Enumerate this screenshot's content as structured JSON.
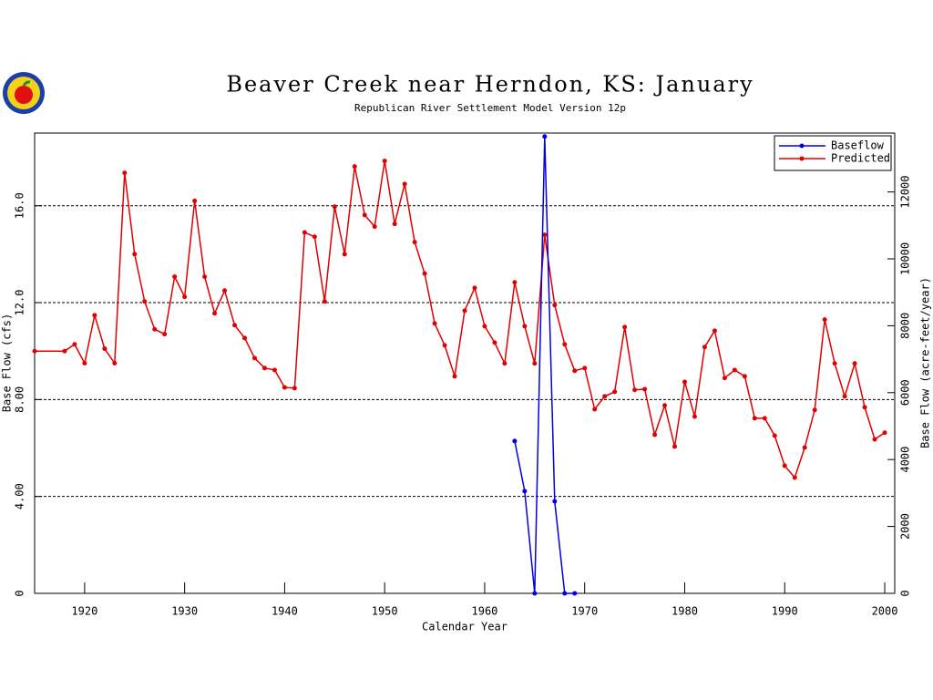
{
  "chart_data": {
    "type": "line",
    "title": "Beaver Creek near Herndon, KS: January",
    "subtitle": "Republican River Settlement Model Version 12p",
    "x_label": "Calendar Year",
    "y_label": "Base Flow (cfs)",
    "y2_label": "Base Flow (acre-feet/year)",
    "xlim": [
      1915,
      2001
    ],
    "xticks": [
      1920,
      1930,
      1940,
      1950,
      1960,
      1970,
      1980,
      1990,
      2000
    ],
    "ylim": [
      0,
      19
    ],
    "yticks": [
      {
        "value": 0,
        "label": "0"
      },
      {
        "value": 4,
        "label": "4.00"
      },
      {
        "value": 8,
        "label": "8.00"
      },
      {
        "value": 12,
        "label": "12.0"
      },
      {
        "value": 16,
        "label": "16.0"
      }
    ],
    "y2lim": [
      0,
      13760
    ],
    "y2ticks": [
      0,
      2000,
      4000,
      6000,
      8000,
      10000,
      12000
    ],
    "grid": true,
    "legend": "top-right",
    "series": [
      {
        "name": "Baseflow",
        "color": "#0000e0",
        "x": [
          1963,
          1964,
          1965,
          1966,
          1967,
          1968,
          1969
        ],
        "values": [
          6.29,
          4.22,
          0,
          18.86,
          3.8,
          0,
          0
        ]
      },
      {
        "name": "Predicted",
        "color": "#e00000",
        "x": [
          1915,
          1918,
          1919,
          1920,
          1921,
          1922,
          1923,
          1924,
          1925,
          1926,
          1927,
          1928,
          1929,
          1930,
          1931,
          1932,
          1933,
          1934,
          1935,
          1936,
          1937,
          1938,
          1939,
          1940,
          1941,
          1942,
          1943,
          1944,
          1945,
          1946,
          1947,
          1948,
          1949,
          1950,
          1951,
          1952,
          1953,
          1954,
          1955,
          1956,
          1957,
          1958,
          1959,
          1960,
          1961,
          1962,
          1963,
          1964,
          1965,
          1966,
          1967,
          1968,
          1969,
          1970,
          1971,
          1972,
          1973,
          1974,
          1975,
          1976,
          1977,
          1978,
          1979,
          1980,
          1981,
          1982,
          1983,
          1984,
          1985,
          1986,
          1987,
          1988,
          1989,
          1990,
          1991,
          1992,
          1993,
          1994,
          1995,
          1996,
          1997,
          1998,
          1999,
          2000
        ],
        "values": [
          10.0,
          10.0,
          10.28,
          9.5,
          11.48,
          10.1,
          9.5,
          17.36,
          14.0,
          12.05,
          10.9,
          10.7,
          13.07,
          12.24,
          16.2,
          13.07,
          11.56,
          12.5,
          11.07,
          10.54,
          9.71,
          9.3,
          9.22,
          8.5,
          8.47,
          14.9,
          14.72,
          12.05,
          15.96,
          14.0,
          17.62,
          15.62,
          15.14,
          17.85,
          15.25,
          16.9,
          14.5,
          13.2,
          11.14,
          10.24,
          8.96,
          11.67,
          12.61,
          11.03,
          10.35,
          9.49,
          12.84,
          11.03,
          9.49,
          14.8,
          11.9,
          10.28,
          9.19,
          9.3,
          7.6,
          8.13,
          8.32,
          10.99,
          8.4,
          8.43,
          6.55,
          7.76,
          6.06,
          8.73,
          7.3,
          10.17,
          10.84,
          8.89,
          9.22,
          8.96,
          7.23,
          7.23,
          6.51,
          5.27,
          4.78,
          6.02,
          7.57,
          11.3,
          9.49,
          8.13,
          9.49,
          7.68,
          6.36,
          6.63
        ]
      }
    ]
  }
}
